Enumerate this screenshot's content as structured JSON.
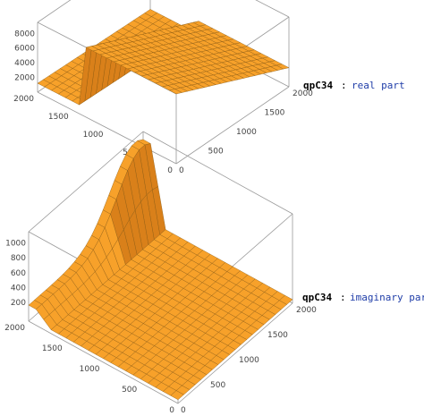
{
  "chart_data": [
    {
      "type": "surface3d",
      "label": {
        "name": "qpC34",
        "separator": ":",
        "part": "real part"
      },
      "axes": {
        "x_ticks": [
          "500",
          "1000",
          "1500",
          "2000"
        ],
        "y_ticks": [
          "0",
          "500",
          "1000",
          "1500",
          "2000"
        ],
        "z_ticks": [
          "2000",
          "4000",
          "6000",
          "8000"
        ],
        "x_origin_label": "0",
        "x_range": [
          0,
          2000
        ],
        "y_range": [
          0,
          2000
        ],
        "z_range": [
          0,
          9500
        ]
      },
      "surface": {
        "description_free_shape": "plane",
        "plane_value_at_x0": 9500,
        "plane_value_at_x2000_start": 2600,
        "cliff_y": 1350,
        "post_cliff_level": 1200,
        "post_cliff_slope_per_1000": -200,
        "noise_near_cliff": true
      },
      "colors": {
        "face": "#f7a12a",
        "face_dark": "#d9801a",
        "mesh": "#8a5a12"
      }
    },
    {
      "type": "surface3d",
      "label": {
        "name": "qpC34",
        "separator": ":",
        "part": "imaginary part"
      },
      "axes": {
        "x_ticks": [
          "500",
          "1000",
          "1500",
          "2000"
        ],
        "y_ticks": [
          "0",
          "500",
          "1000",
          "1500",
          "2000"
        ],
        "z_ticks": [
          "200",
          "400",
          "600",
          "800",
          "1000"
        ],
        "x_origin_label": "0",
        "x_range": [
          0,
          2000
        ],
        "y_range": [
          0,
          2000
        ],
        "z_range": [
          -50,
          1150
        ]
      },
      "surface": {
        "flat_level": 0,
        "spike_y": 1900,
        "spike_peak": 1100,
        "spike_x_peak": 1850
      },
      "colors": {
        "face": "#f7a12a",
        "face_dark": "#d9801a",
        "mesh": "#8a5a12"
      }
    }
  ]
}
